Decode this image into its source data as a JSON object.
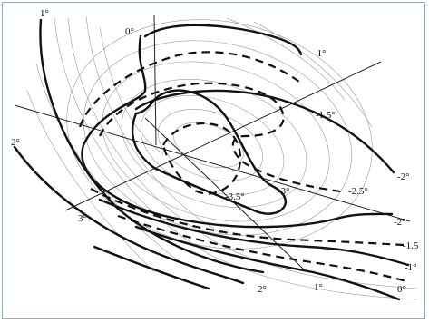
{
  "diagram": {
    "labels": {
      "top_1": "1°",
      "top_0": "0°",
      "right_m1_top": "-1°",
      "m1_5_upper": "-1.5°",
      "m2_right": "-2°",
      "m2_5": "-2.5°",
      "m3": "-3°",
      "m3_5": "-3.5°",
      "m2_lower": "-2°",
      "m1_5_lower": "-1.5",
      "m1_lower": "-1°",
      "left_2": "2°",
      "left_3": "3°",
      "bottom_2": "2°",
      "bottom_1": "1°",
      "bottom_0": "0°"
    }
  }
}
